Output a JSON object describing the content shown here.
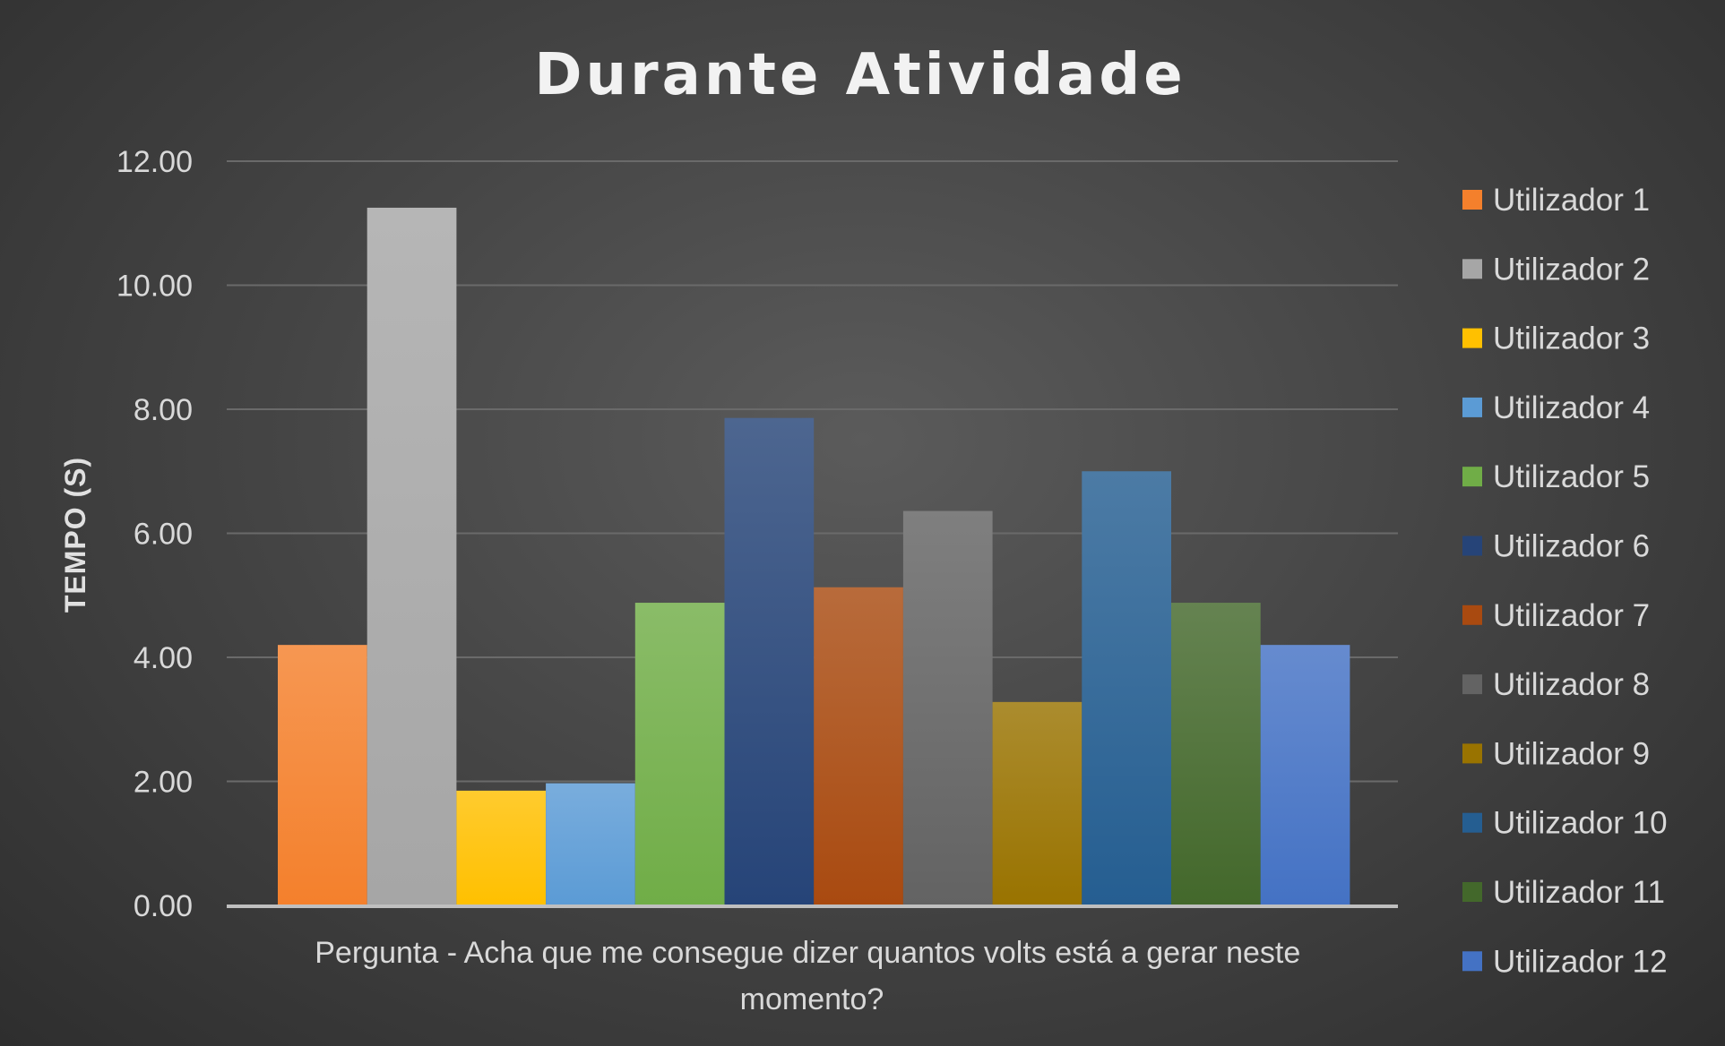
{
  "chart_data": {
    "type": "bar",
    "title": "Durante Atividade",
    "ylabel": "TEMPO (S)",
    "xlabel": "",
    "category_lines": [
      "Pergunta - Acha que me consegue dizer quantos volts está a gerar neste",
      "momento?"
    ],
    "ylim": [
      0,
      12
    ],
    "yticks": [
      "0.00",
      "2.00",
      "4.00",
      "6.00",
      "8.00",
      "10.00",
      "12.00"
    ],
    "grid": true,
    "legend_position": "right",
    "series": [
      {
        "name": "Utilizador 1",
        "value": 4.2,
        "color": "#f4802c"
      },
      {
        "name": "Utilizador 2",
        "value": 11.25,
        "color": "#a6a6a6"
      },
      {
        "name": "Utilizador 3",
        "value": 1.85,
        "color": "#ffc000"
      },
      {
        "name": "Utilizador 4",
        "value": 1.97,
        "color": "#5b9bd5"
      },
      {
        "name": "Utilizador 5",
        "value": 4.88,
        "color": "#70ad47"
      },
      {
        "name": "Utilizador 6",
        "value": 7.86,
        "color": "#264478"
      },
      {
        "name": "Utilizador 7",
        "value": 5.13,
        "color": "#a94a10"
      },
      {
        "name": "Utilizador 8",
        "value": 6.36,
        "color": "#636363"
      },
      {
        "name": "Utilizador 9",
        "value": 3.28,
        "color": "#997300"
      },
      {
        "name": "Utilizador 10",
        "value": 7.0,
        "color": "#255e91"
      },
      {
        "name": "Utilizador 11",
        "value": 4.88,
        "color": "#43682b"
      },
      {
        "name": "Utilizador 12",
        "value": 4.2,
        "color": "#4472c4"
      }
    ]
  }
}
